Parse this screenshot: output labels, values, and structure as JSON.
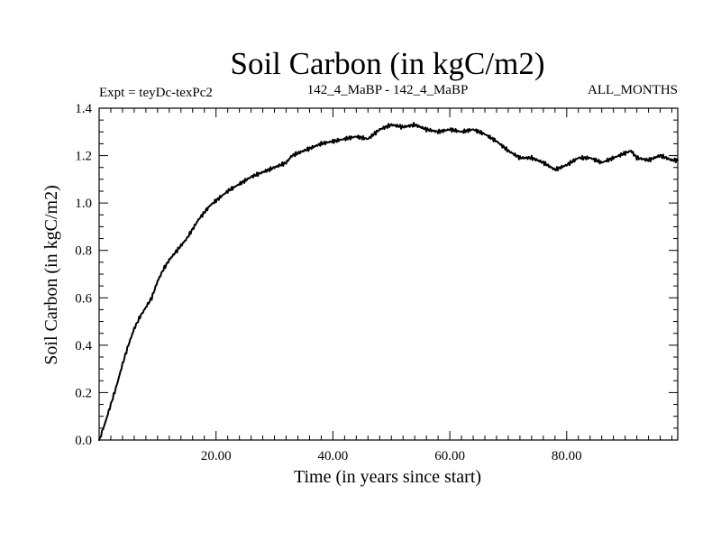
{
  "chart_data": {
    "type": "line",
    "title": "Soil Carbon (in kgC/m2)",
    "subtitle_left": "Expt = teyDc-texPc2",
    "subtitle_center": "142_4_MaBP - 142_4_MaBP",
    "subtitle_right": "ALL_MONTHS",
    "xlabel": "Time (in years since start)",
    "ylabel": "Soil Carbon (in kgC/m2)",
    "xlim": [
      0,
      99
    ],
    "ylim": [
      0,
      1.4
    ],
    "x_ticks": [
      20,
      40,
      60,
      80
    ],
    "x_tick_labels": [
      "20.00",
      "40.00",
      "60.00",
      "80.00"
    ],
    "y_ticks": [
      0,
      0.2,
      0.4,
      0.6,
      0.8,
      1.0,
      1.2,
      1.4
    ],
    "y_tick_labels": [
      "0.0",
      "0.2",
      "0.4",
      "0.6",
      "0.8",
      "1.0",
      "1.2",
      "1.4"
    ],
    "series": [
      {
        "name": "Soil Carbon",
        "x": [
          0,
          1,
          2,
          3,
          4,
          5,
          6,
          7,
          8,
          9,
          10,
          11,
          12,
          13,
          14,
          15,
          16,
          17,
          18,
          19,
          20,
          22,
          24,
          26,
          28,
          30,
          32,
          33,
          34,
          36,
          38,
          40,
          42,
          44,
          46,
          48,
          50,
          52,
          54,
          56,
          58,
          60,
          62,
          64,
          66,
          68,
          70,
          72,
          74,
          76,
          78,
          80,
          82,
          84,
          86,
          88,
          90,
          91,
          92,
          94,
          96,
          98,
          99
        ],
        "y": [
          0.0,
          0.07,
          0.15,
          0.23,
          0.32,
          0.4,
          0.47,
          0.52,
          0.56,
          0.6,
          0.67,
          0.72,
          0.76,
          0.79,
          0.82,
          0.85,
          0.89,
          0.93,
          0.96,
          0.99,
          1.01,
          1.05,
          1.08,
          1.11,
          1.13,
          1.15,
          1.17,
          1.2,
          1.21,
          1.23,
          1.25,
          1.26,
          1.27,
          1.28,
          1.27,
          1.31,
          1.33,
          1.32,
          1.33,
          1.31,
          1.3,
          1.31,
          1.3,
          1.31,
          1.29,
          1.26,
          1.22,
          1.19,
          1.19,
          1.17,
          1.14,
          1.16,
          1.19,
          1.19,
          1.17,
          1.19,
          1.21,
          1.22,
          1.19,
          1.18,
          1.2,
          1.18,
          1.18
        ]
      }
    ]
  }
}
